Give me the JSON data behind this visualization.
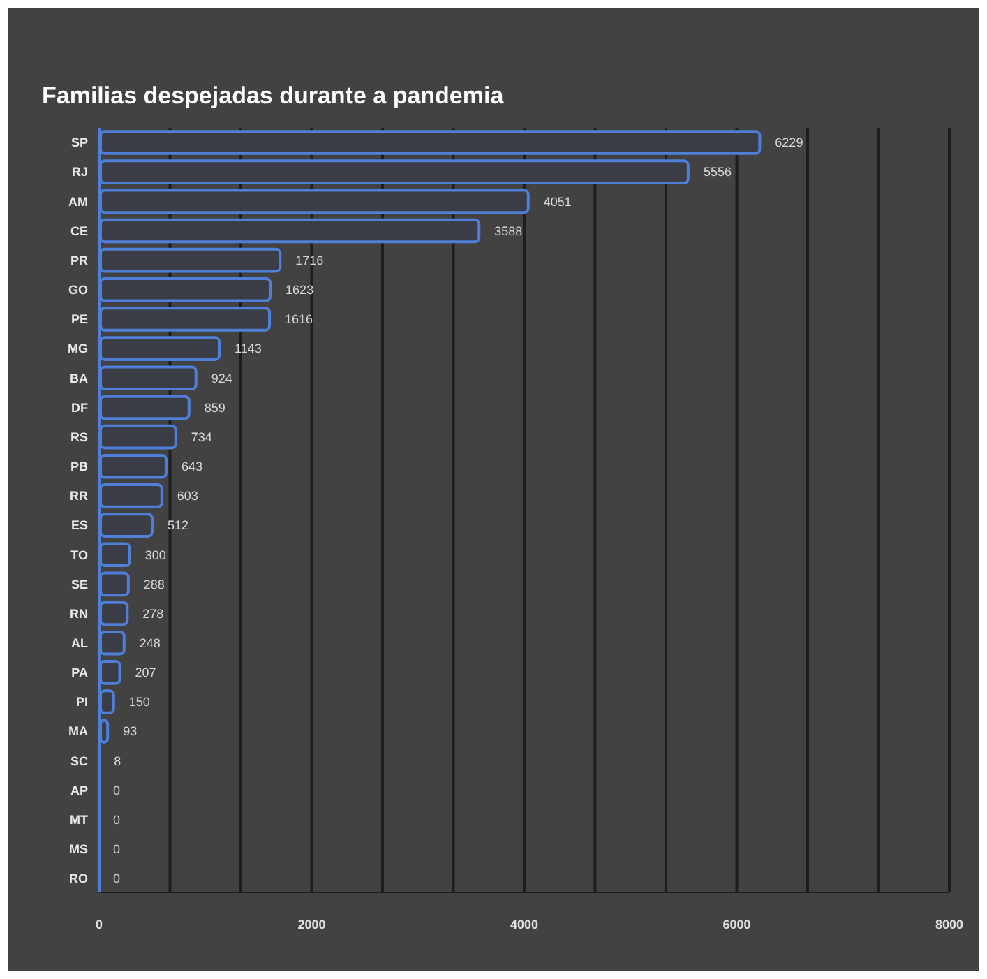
{
  "chart_data": {
    "type": "bar",
    "orientation": "horizontal",
    "title": "Familias despejadas durante a pandemia",
    "categories": [
      "SP",
      "RJ",
      "AM",
      "CE",
      "PR",
      "GO",
      "PE",
      "MG",
      "BA",
      "DF",
      "RS",
      "PB",
      "RR",
      "ES",
      "TO",
      "SE",
      "RN",
      "AL",
      "PA",
      "PI",
      "MA",
      "SC",
      "AP",
      "MT",
      "MS",
      "RO"
    ],
    "values": [
      6229,
      5556,
      4051,
      3588,
      1716,
      1623,
      1616,
      1143,
      924,
      859,
      734,
      643,
      603,
      512,
      300,
      288,
      278,
      248,
      207,
      150,
      93,
      8,
      0,
      0,
      0,
      0
    ],
    "color": "#4f7fd6",
    "data_labels": true,
    "xlim": [
      0,
      8000
    ],
    "xticks": [
      0,
      {
        "value": 666.7,
        "label": null
      },
      {
        "value": 1333.3,
        "label": null
      },
      2000,
      {
        "value": 2666.7,
        "label": null
      },
      {
        "value": 3333.3,
        "label": null
      },
      4000,
      {
        "value": 4666.7,
        "label": null
      },
      {
        "value": 5333.3,
        "label": null
      },
      6000,
      {
        "value": 6666.7,
        "label": null
      },
      {
        "value": 7333.3,
        "label": null
      },
      8000
    ],
    "grid": "x"
  }
}
